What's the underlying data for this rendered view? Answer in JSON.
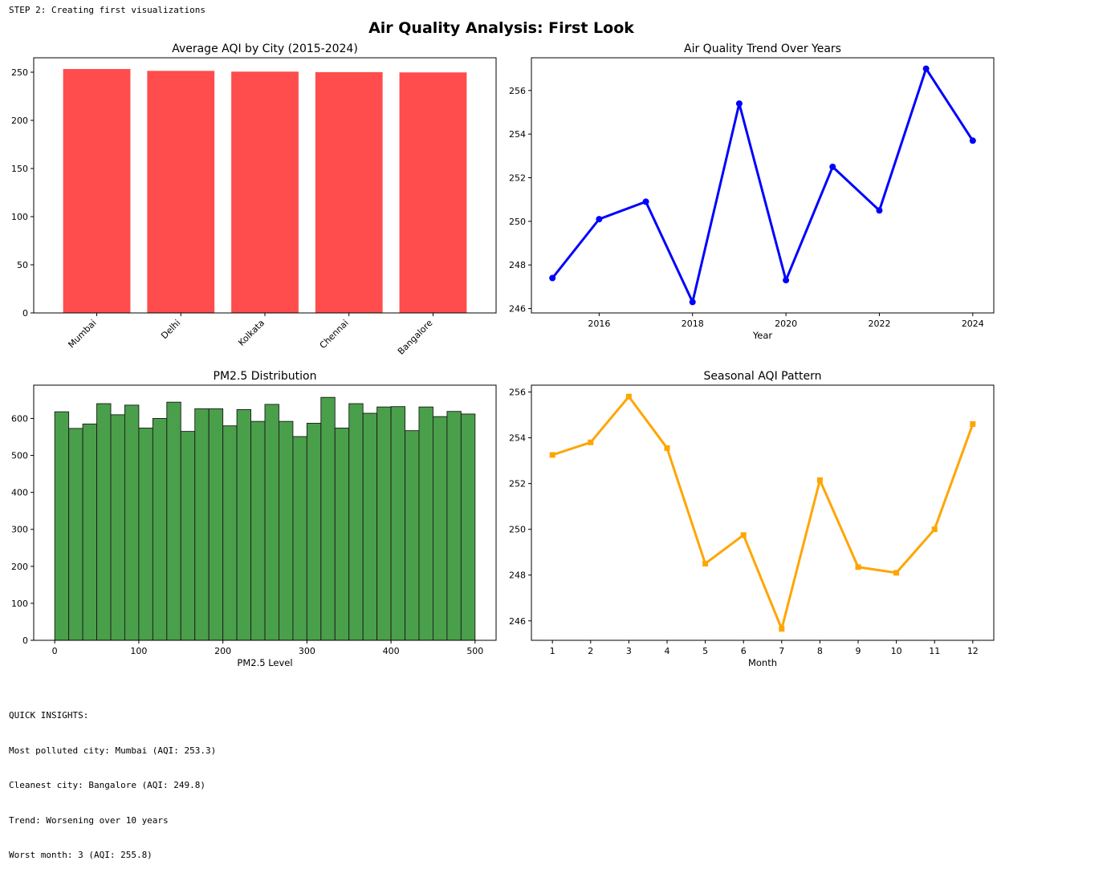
{
  "console": {
    "step_line": "STEP 2: Creating first visualizations",
    "insights": [
      "QUICK INSIGHTS:",
      "Most polluted city: Mumbai (AQI: 253.3)",
      "Cleanest city: Bangalore (AQI: 249.8)",
      "Trend: Worsening over 10 years",
      "Worst month: 3 (AQI: 255.8)"
    ]
  },
  "figure": {
    "suptitle": "Air Quality Analysis: First Look"
  },
  "colors": {
    "bar": "#ff4c4c",
    "trend_line": "#0000ff",
    "histogram": "#4a9f4a",
    "histogram_edge": "#1a1a1a",
    "seasonal_line": "#ffa500"
  },
  "chart_data": [
    {
      "type": "bar",
      "title": "Average AQI by City (2015-2024)",
      "xlabel": "",
      "ylabel": "",
      "categories": [
        "Mumbai",
        "Delhi",
        "Kolkata",
        "Chennai",
        "Bangalore"
      ],
      "values": [
        253.3,
        251.4,
        250.6,
        250.1,
        249.8
      ],
      "ylim": [
        0,
        265
      ],
      "yticks": [
        0,
        50,
        100,
        150,
        200,
        250
      ],
      "xtick_rotation_deg": 45,
      "grid": false,
      "legend": "none"
    },
    {
      "type": "line",
      "title": "Air Quality Trend Over Years",
      "xlabel": "Year",
      "ylabel": "",
      "x": [
        2015,
        2016,
        2017,
        2018,
        2019,
        2020,
        2021,
        2022,
        2023,
        2024
      ],
      "y": [
        247.4,
        250.1,
        250.9,
        246.3,
        255.4,
        247.3,
        252.5,
        250.5,
        257.0,
        253.7
      ],
      "xlim": [
        2014.55,
        2024.45
      ],
      "ylim": [
        245.8,
        257.5
      ],
      "xticks": [
        2016,
        2018,
        2020,
        2022,
        2024
      ],
      "yticks": [
        246,
        248,
        250,
        252,
        254,
        256
      ],
      "marker": "circle",
      "grid": false,
      "legend": "none"
    },
    {
      "type": "bar",
      "subtype": "histogram",
      "title": "PM2.5 Distribution",
      "xlabel": "PM2.5 Level",
      "ylabel": "",
      "bin_range": [
        0,
        500
      ],
      "bins": 30,
      "counts": [
        618,
        573,
        585,
        640,
        610,
        636,
        574,
        600,
        644,
        565,
        626,
        626,
        580,
        624,
        592,
        638,
        592,
        551,
        587,
        657,
        574,
        640,
        614,
        631,
        632,
        567,
        631,
        605,
        619,
        612
      ],
      "xlim": [
        -25,
        525
      ],
      "ylim": [
        0,
        690
      ],
      "xticks": [
        0,
        100,
        200,
        300,
        400,
        500
      ],
      "yticks": [
        0,
        100,
        200,
        300,
        400,
        500,
        600
      ],
      "grid": false,
      "legend": "none"
    },
    {
      "type": "line",
      "title": "Seasonal AQI Pattern",
      "xlabel": "Month",
      "ylabel": "",
      "x": [
        1,
        2,
        3,
        4,
        5,
        6,
        7,
        8,
        9,
        10,
        11,
        12
      ],
      "y": [
        253.25,
        253.8,
        255.8,
        253.55,
        248.5,
        249.75,
        245.65,
        252.15,
        248.35,
        248.1,
        250.0,
        254.6
      ],
      "xlim": [
        0.45,
        12.55
      ],
      "ylim": [
        245.15,
        256.3
      ],
      "xticks": [
        1,
        2,
        3,
        4,
        5,
        6,
        7,
        8,
        9,
        10,
        11,
        12
      ],
      "yticks": [
        246,
        248,
        250,
        252,
        254,
        256
      ],
      "marker": "square",
      "grid": false,
      "legend": "none"
    }
  ]
}
